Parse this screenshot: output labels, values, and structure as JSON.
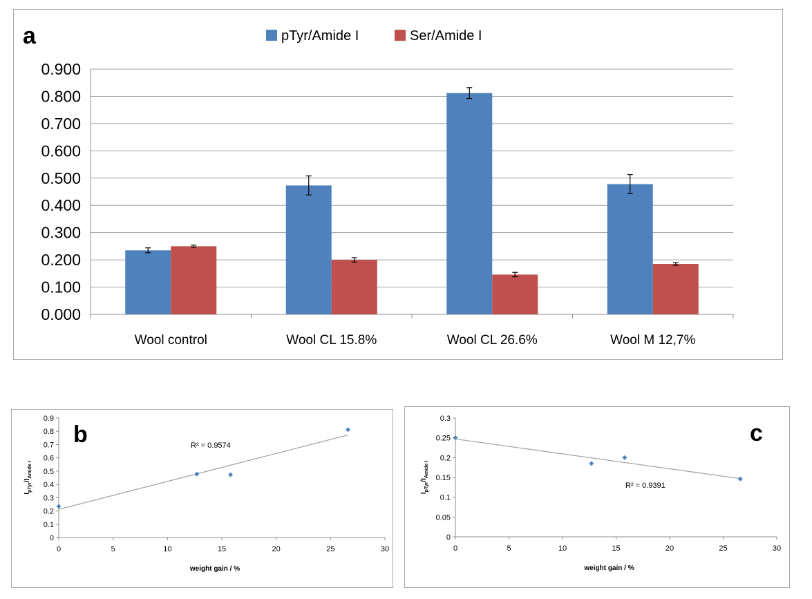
{
  "chart_data": [
    {
      "id": "a",
      "panel_label": "a",
      "type": "bar",
      "categories": [
        "Wool control",
        "Wool CL 15.8%",
        "Wool CL 26.6%",
        "Wool M 12,7%"
      ],
      "series": [
        {
          "name": "pTyr/Amide I",
          "color": "#4f81bd",
          "values": [
            0.235,
            0.473,
            0.812,
            0.478
          ],
          "errors": [
            0.009,
            0.035,
            0.02,
            0.035
          ]
        },
        {
          "name": "Ser/Amide I",
          "color": "#c0504d",
          "values": [
            0.25,
            0.2,
            0.146,
            0.185
          ],
          "errors": [
            0.004,
            0.008,
            0.008,
            0.005
          ]
        }
      ],
      "ylim": [
        0,
        0.9
      ],
      "yticks": [
        "0.000",
        "0.100",
        "0.200",
        "0.300",
        "0.400",
        "0.500",
        "0.600",
        "0.700",
        "0.800",
        "0.900"
      ],
      "grid": true,
      "legend": "top"
    },
    {
      "id": "b",
      "panel_label": "b",
      "type": "scatter",
      "x": [
        0,
        12.7,
        15.8,
        26.6
      ],
      "y": [
        0.235,
        0.478,
        0.473,
        0.812
      ],
      "trendline": {
        "x": [
          0,
          26.6
        ],
        "y": [
          0.212,
          0.772
        ]
      },
      "r2": "R² = 0.9574",
      "xlabel": "weight gain / %",
      "ylabel": {
        "main": "I",
        "sub1": "pTyr",
        "sep": "/I",
        "sub2": "Amide I"
      },
      "xlim": [
        0,
        30
      ],
      "ylim": [
        0,
        0.9
      ],
      "xticks": [
        "0",
        "5",
        "10",
        "15",
        "20",
        "25",
        "30"
      ],
      "yticks": [
        "0",
        "0.1",
        "0.2",
        "0.3",
        "0.4",
        "0.5",
        "0.6",
        "0.7",
        "0.8",
        "0.9"
      ],
      "point_color": "#4f81bd"
    },
    {
      "id": "c",
      "panel_label": "c",
      "type": "scatter",
      "x": [
        0,
        12.7,
        15.8,
        26.6
      ],
      "y": [
        0.25,
        0.185,
        0.2,
        0.146
      ],
      "trendline": {
        "x": [
          0,
          26.6
        ],
        "y": [
          0.247,
          0.147
        ]
      },
      "r2": "R² = 0.9391",
      "xlabel": "weight gain / %",
      "ylabel": {
        "main": "I",
        "sub1": "pTyr",
        "sep": "/I",
        "sub2": "Amide I"
      },
      "xlim": [
        0,
        30
      ],
      "ylim": [
        0,
        0.3
      ],
      "xticks": [
        "0",
        "5",
        "10",
        "15",
        "20",
        "25",
        "30"
      ],
      "yticks": [
        "0",
        "0.05",
        "0.1",
        "0.15",
        "0.2",
        "0.25",
        "0.3"
      ],
      "point_color": "#4f81bd"
    }
  ]
}
